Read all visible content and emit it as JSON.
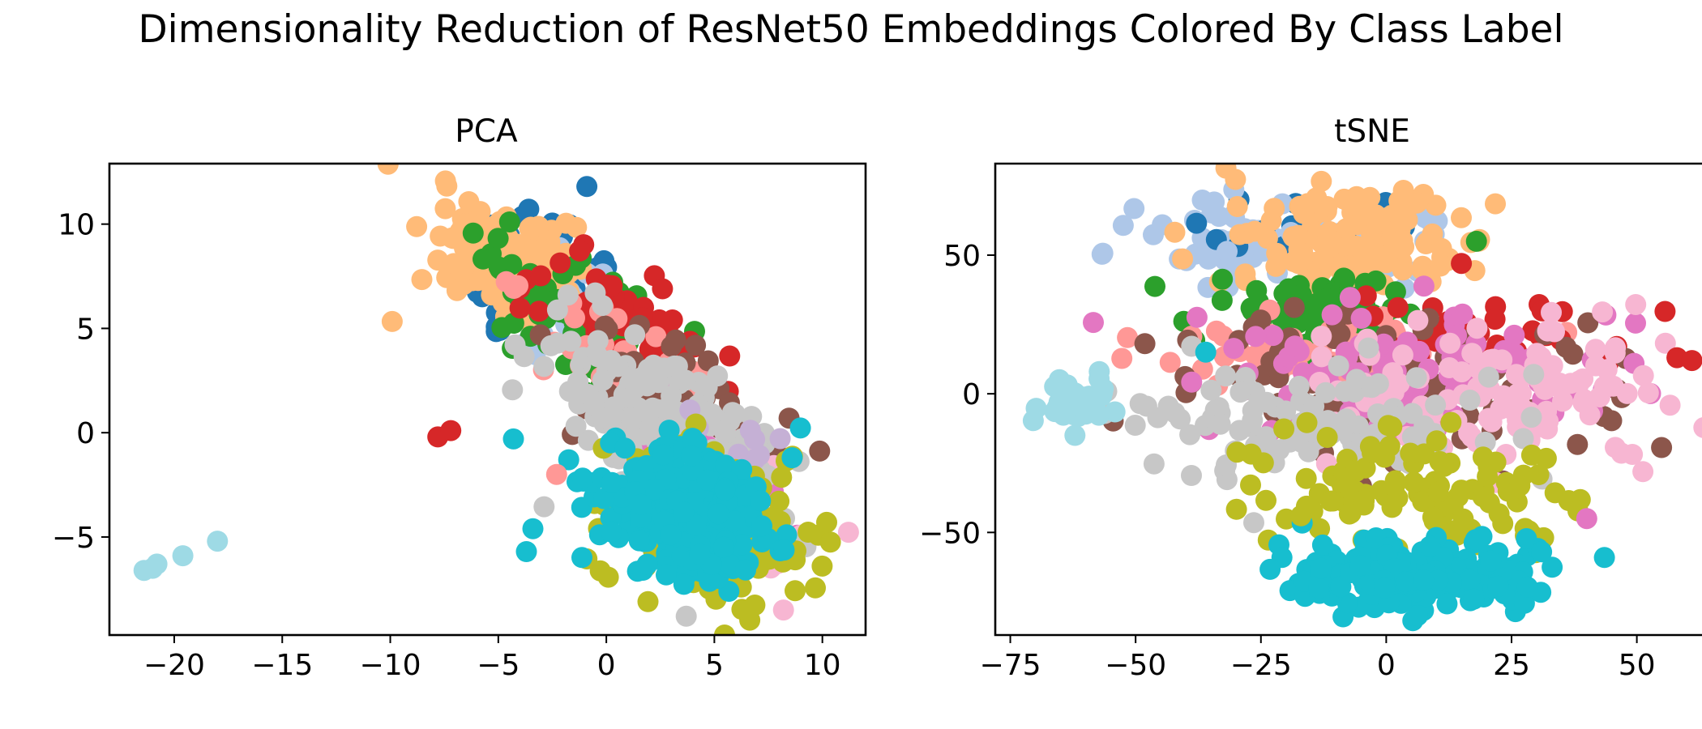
{
  "suptitle": "Dimensionality Reduction of ResNet50 Embeddings Colored By Class Label",
  "colors": {
    "c0": "#1f77b4",
    "c1": "#aec7e8",
    "c2": "#ffbb78",
    "c3": "#2ca02c",
    "c4": "#d62728",
    "c5": "#ff9896",
    "c6": "#8c564b",
    "c7": "#e377c2",
    "c8": "#f7b6d2",
    "c9": "#c7c7c7",
    "c10": "#bcbd22",
    "c11": "#17becf",
    "c12": "#9edae5",
    "c13": "#c5b0d5"
  },
  "chart_data": [
    {
      "type": "scatter",
      "title": "PCA",
      "xlabel": "",
      "ylabel": "",
      "xlim": [
        -23,
        12
      ],
      "ylim": [
        -9.7,
        12.9
      ],
      "xticks": [
        -20,
        -15,
        -10,
        -5,
        0,
        5,
        10
      ],
      "yticks": [
        -5,
        0,
        5,
        10
      ],
      "grid": false,
      "legend": false,
      "clusters": [
        {
          "color": "c0",
          "center": [
            -3.5,
            7.5
          ],
          "spread": [
            1.6,
            1.8
          ],
          "n": 60,
          "angle": -40
        },
        {
          "color": "c1",
          "center": [
            -2.5,
            6.5
          ],
          "spread": [
            1.6,
            1.5
          ],
          "n": 25,
          "angle": -40
        },
        {
          "color": "c2",
          "center": [
            -4.5,
            8.2
          ],
          "spread": [
            1.8,
            1.3
          ],
          "n": 160,
          "angle": -35
        },
        {
          "color": "c3",
          "center": [
            -0.8,
            5.0
          ],
          "spread": [
            2.8,
            1.3
          ],
          "n": 90,
          "angle": -40
        },
        {
          "color": "c4",
          "center": [
            0.5,
            5.0
          ],
          "spread": [
            2.5,
            1.2
          ],
          "n": 60,
          "angle": -40
        },
        {
          "color": "c5",
          "center": [
            0.5,
            3.5
          ],
          "spread": [
            2.8,
            1.1
          ],
          "n": 40,
          "angle": -40
        },
        {
          "color": "c6",
          "center": [
            3.0,
            1.0
          ],
          "spread": [
            3.0,
            1.5
          ],
          "n": 60,
          "angle": -40
        },
        {
          "color": "c7",
          "center": [
            5.0,
            -2.0
          ],
          "spread": [
            2.5,
            1.2
          ],
          "n": 40,
          "angle": -40
        },
        {
          "color": "c8",
          "center": [
            5.0,
            -3.5
          ],
          "spread": [
            2.0,
            1.5
          ],
          "n": 30,
          "angle": -30
        },
        {
          "color": "c9",
          "center": [
            2.5,
            0.5
          ],
          "spread": [
            3.0,
            1.7
          ],
          "n": 150,
          "angle": -40
        },
        {
          "color": "c13",
          "center": [
            5.5,
            -1.0
          ],
          "spread": [
            2.0,
            1.0
          ],
          "n": 15,
          "angle": -40
        },
        {
          "color": "c10",
          "center": [
            5.0,
            -4.5
          ],
          "spread": [
            2.4,
            1.8
          ],
          "n": 150,
          "angle": -20
        },
        {
          "color": "c11",
          "center": [
            4.0,
            -3.8
          ],
          "spread": [
            2.0,
            1.6
          ],
          "n": 300,
          "angle": -20
        }
      ],
      "points": [
        {
          "color": "c12",
          "x": -21.4,
          "y": -6.6
        },
        {
          "color": "c12",
          "x": -21.0,
          "y": -6.5
        },
        {
          "color": "c12",
          "x": -20.8,
          "y": -6.3
        },
        {
          "color": "c12",
          "x": -19.6,
          "y": -5.9
        },
        {
          "color": "c12",
          "x": -18.0,
          "y": -5.2
        },
        {
          "color": "c4",
          "x": -7.8,
          "y": -0.2
        },
        {
          "color": "c4",
          "x": -7.2,
          "y": 0.1
        },
        {
          "color": "c11",
          "x": -4.3,
          "y": -0.3
        },
        {
          "color": "c11",
          "x": -3.4,
          "y": -4.6
        },
        {
          "color": "c11",
          "x": -3.7,
          "y": -5.7
        },
        {
          "color": "c5",
          "x": -2.3,
          "y": -2.0
        },
        {
          "color": "c0",
          "x": -0.9,
          "y": 11.8
        },
        {
          "color": "c4",
          "x": 2.6,
          "y": 6.9
        },
        {
          "color": "c8",
          "x": 8.2,
          "y": -8.5
        },
        {
          "color": "c9",
          "x": 3.7,
          "y": -8.8
        },
        {
          "color": "c10",
          "x": 10.2,
          "y": -4.3
        },
        {
          "color": "c11",
          "x": 8.6,
          "y": -1.2
        }
      ]
    },
    {
      "type": "scatter",
      "title": "tSNE",
      "xlabel": "",
      "ylabel": "",
      "xlim": [
        -78,
        63
      ],
      "ylim": [
        -87,
        83
      ],
      "xticks": [
        -75,
        -50,
        -25,
        0,
        25,
        50
      ],
      "yticks": [
        -50,
        0,
        50
      ],
      "grid": false,
      "legend": false,
      "clusters": [
        {
          "color": "c1",
          "center": [
            -33,
            55
          ],
          "spread": [
            9,
            8
          ],
          "n": 40,
          "angle": 0
        },
        {
          "color": "c0",
          "center": [
            -15,
            62
          ],
          "spread": [
            10,
            5
          ],
          "n": 25,
          "angle": 0
        },
        {
          "color": "c1",
          "center": [
            -5,
            60
          ],
          "spread": [
            15,
            8
          ],
          "n": 30,
          "angle": 0
        },
        {
          "color": "c2",
          "center": [
            -8,
            56
          ],
          "spread": [
            12,
            9
          ],
          "n": 130,
          "angle": 0
        },
        {
          "color": "c3",
          "center": [
            -15,
            30
          ],
          "spread": [
            10,
            7
          ],
          "n": 70,
          "angle": 0
        },
        {
          "color": "c5",
          "center": [
            -10,
            15
          ],
          "spread": [
            15,
            7
          ],
          "n": 50,
          "angle": 0
        },
        {
          "color": "c4",
          "center": [
            15,
            20
          ],
          "spread": [
            15,
            9
          ],
          "n": 40,
          "angle": 0
        },
        {
          "color": "c6",
          "center": [
            5,
            5
          ],
          "spread": [
            25,
            15
          ],
          "n": 110,
          "angle": 0
        },
        {
          "color": "c7",
          "center": [
            5,
            8
          ],
          "spread": [
            25,
            12
          ],
          "n": 100,
          "angle": 0
        },
        {
          "color": "c8",
          "center": [
            25,
            0
          ],
          "spread": [
            20,
            12
          ],
          "n": 120,
          "angle": 0
        },
        {
          "color": "c9",
          "center": [
            -10,
            -10
          ],
          "spread": [
            20,
            10
          ],
          "n": 110,
          "angle": 0
        },
        {
          "color": "c10",
          "center": [
            5,
            -35
          ],
          "spread": [
            15,
            10
          ],
          "n": 110,
          "angle": 0
        },
        {
          "color": "c11",
          "center": [
            5,
            -65
          ],
          "spread": [
            12,
            6
          ],
          "n": 200,
          "angle": 0
        },
        {
          "color": "c12",
          "center": [
            -63,
            -3
          ],
          "spread": [
            3.5,
            4
          ],
          "n": 40,
          "angle": 0
        }
      ],
      "points": [
        {
          "color": "c11",
          "x": -36,
          "y": 15
        },
        {
          "color": "c4",
          "x": 15,
          "y": 47
        },
        {
          "color": "c3",
          "x": 18,
          "y": 55
        },
        {
          "color": "c4",
          "x": 58,
          "y": 13
        },
        {
          "color": "c4",
          "x": 61,
          "y": 12
        },
        {
          "color": "c7",
          "x": 40,
          "y": -45
        },
        {
          "color": "c10",
          "x": -17,
          "y": -44
        },
        {
          "color": "c11",
          "x": -13,
          "y": -63
        },
        {
          "color": "c11",
          "x": 31,
          "y": -57
        }
      ]
    }
  ]
}
